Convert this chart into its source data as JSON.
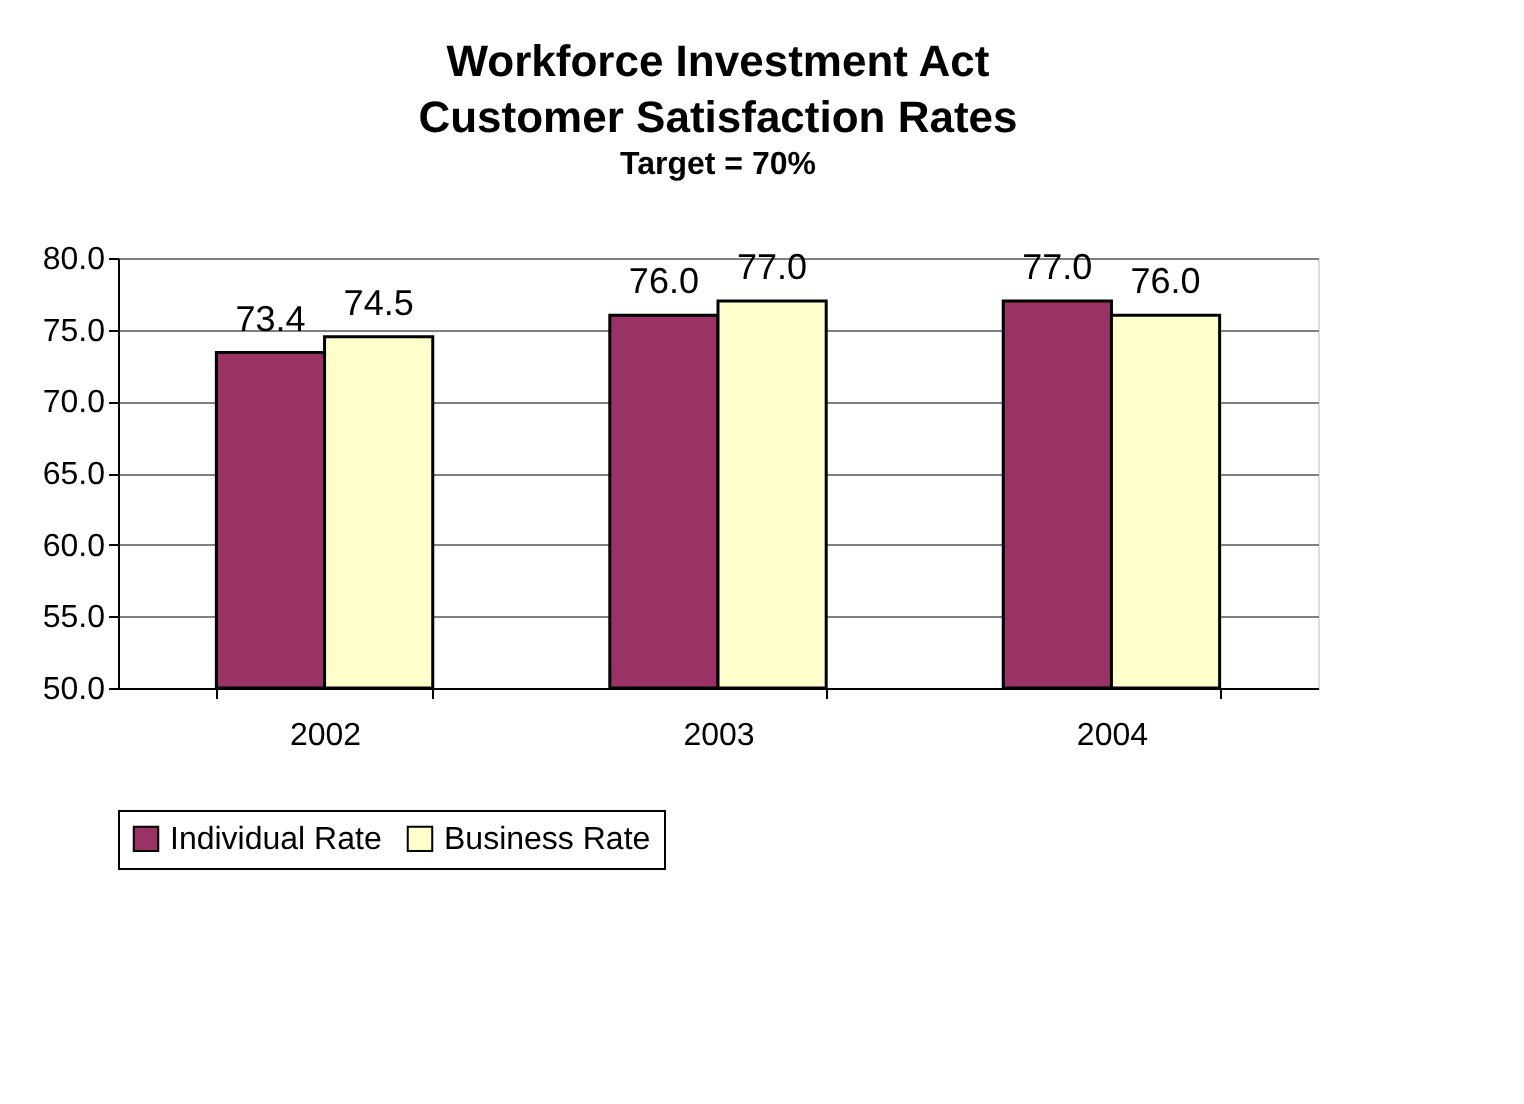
{
  "chart_data": {
    "type": "bar",
    "title": "Workforce Investment Act\nCustomer Satisfaction Rates",
    "subtitle": "Target = 70%",
    "categories": [
      "2002",
      "2003",
      "2004"
    ],
    "series": [
      {
        "name": "Individual Rate",
        "color": "#993366",
        "values": [
          73.4,
          76.0,
          77.0
        ],
        "value_labels": [
          "73.4",
          "76.0",
          "77.0"
        ]
      },
      {
        "name": "Business Rate",
        "color": "#ffffcc",
        "values": [
          74.5,
          77.0,
          76.0
        ],
        "value_labels": [
          "74.5",
          "77.0",
          "76.0"
        ]
      }
    ],
    "ylim": [
      50,
      80
    ],
    "yticks": [
      {
        "value": 50,
        "label": "50.0"
      },
      {
        "value": 55,
        "label": "55.0"
      },
      {
        "value": 60,
        "label": "60.0"
      },
      {
        "value": 65,
        "label": "65.0"
      },
      {
        "value": 70,
        "label": "70.0"
      },
      {
        "value": 75,
        "label": "75.0"
      },
      {
        "value": 80,
        "label": "80.0"
      }
    ],
    "grid": "y",
    "legend": "bottom",
    "data_labels": true
  }
}
